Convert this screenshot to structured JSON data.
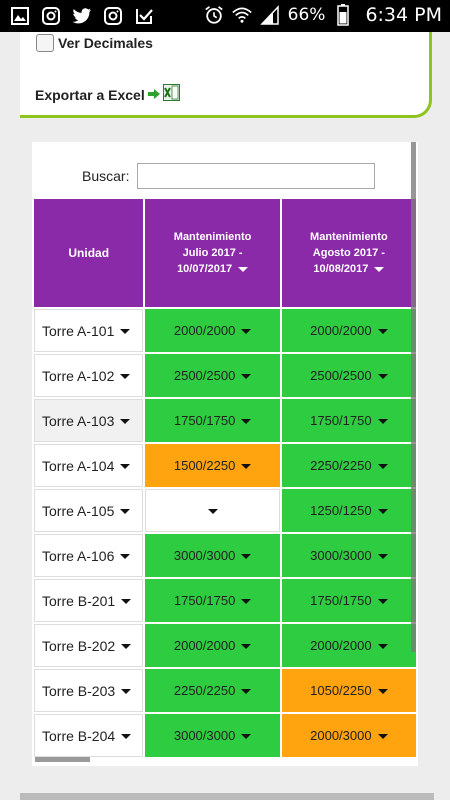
{
  "status_bar": {
    "icons_left": [
      "gallery-icon",
      "instagram-icon",
      "twitter-icon",
      "instagram-icon",
      "check-square-icon"
    ],
    "battery_percent": "66%",
    "time": "6:34 PM"
  },
  "options": {
    "decimals_label": "Ver Decimales",
    "decimals_checked": false,
    "export_label": "Exportar a Excel"
  },
  "search": {
    "label": "Buscar:",
    "value": ""
  },
  "table": {
    "columns": [
      {
        "label": "Unidad"
      },
      {
        "line1": "Mantenimiento",
        "line2": "Julio 2017 -",
        "line3": "10/07/2017"
      },
      {
        "line1": "Mantenimiento",
        "line2": "Agosto 2017 -",
        "line3": "10/08/2017"
      }
    ],
    "rows": [
      {
        "unit": "Torre A-101",
        "c1": "2000/2000",
        "s1": "green",
        "c2": "2000/2000",
        "s2": "green"
      },
      {
        "unit": "Torre A-102",
        "c1": "2500/2500",
        "s1": "green",
        "c2": "2500/2500",
        "s2": "green"
      },
      {
        "unit": "Torre A-103",
        "c1": "1750/1750",
        "s1": "green",
        "c2": "1750/1750",
        "s2": "green"
      },
      {
        "unit": "Torre A-104",
        "c1": "1500/2250",
        "s1": "orange",
        "c2": "2250/2250",
        "s2": "green"
      },
      {
        "unit": "Torre A-105",
        "c1": "",
        "s1": "white",
        "c2": "1250/1250",
        "s2": "green"
      },
      {
        "unit": "Torre A-106",
        "c1": "3000/3000",
        "s1": "green",
        "c2": "3000/3000",
        "s2": "green"
      },
      {
        "unit": "Torre B-201",
        "c1": "1750/1750",
        "s1": "green",
        "c2": "1750/1750",
        "s2": "green"
      },
      {
        "unit": "Torre B-202",
        "c1": "2000/2000",
        "s1": "green",
        "c2": "2000/2000",
        "s2": "green"
      },
      {
        "unit": "Torre B-203",
        "c1": "2250/2250",
        "s1": "green",
        "c2": "1050/2250",
        "s2": "orange"
      },
      {
        "unit": "Torre B-204",
        "c1": "3000/3000",
        "s1": "green",
        "c2": "2000/3000",
        "s2": "orange"
      }
    ]
  },
  "colors": {
    "header": "#8b2aa8",
    "paid": "#2ecc40",
    "partial": "#ffa30f",
    "accent": "#8fc31f"
  }
}
